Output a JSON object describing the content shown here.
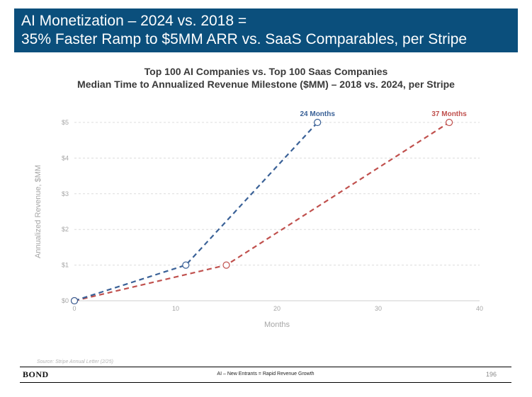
{
  "header": {
    "title_line1": "AI Monetization – 2024 vs. 2018 =",
    "title_line2": "35% Faster Ramp to $5MM ARR vs. SaaS Comparables, per Stripe",
    "background_color": "#0b4f7c"
  },
  "chart_data": {
    "type": "line",
    "title": "Top 100 AI Companies vs. Top 100 Saas Companies",
    "subtitle": "Median Time to Annualized Revenue Milestone ($MM) – 2018 vs. 2024, per Stripe",
    "xlabel": "Months",
    "ylabel": "Annualized Revenue, $MM",
    "xlim": [
      0,
      40
    ],
    "ylim": [
      0,
      5
    ],
    "x_ticks": [
      0,
      10,
      20,
      30,
      40
    ],
    "y_ticks": [
      0,
      1,
      2,
      3,
      4,
      5
    ],
    "y_tick_labels": [
      "$0",
      "$1",
      "$2",
      "$3",
      "$4",
      "$5"
    ],
    "grid": "horizontal dashed",
    "line_style": "dashed",
    "series": [
      {
        "color": "#3a6197",
        "points": [
          {
            "x": 0,
            "y": 0
          },
          {
            "x": 11,
            "y": 1
          },
          {
            "x": 24,
            "y": 5
          }
        ],
        "end_label": "24 Months"
      },
      {
        "color": "#c0504d",
        "points": [
          {
            "x": 0,
            "y": 0
          },
          {
            "x": 15,
            "y": 1
          },
          {
            "x": 37,
            "y": 5
          }
        ],
        "end_label": "37 Months"
      }
    ]
  },
  "footer": {
    "source": "Source: Stripe Annual Letter (2/25)",
    "brand": "BOND",
    "center_text": "AI – New Entrants = Rapid Revenue Growth",
    "page_number": "196"
  }
}
